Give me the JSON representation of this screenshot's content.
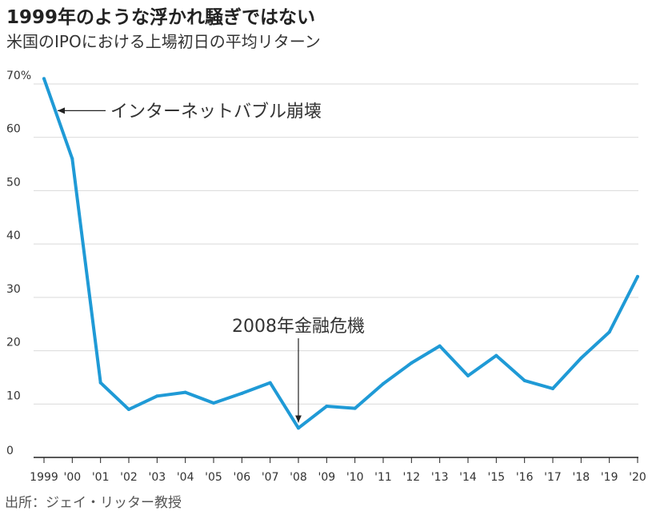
{
  "title": "1999年のような浮かれ騒ぎではない",
  "subtitle": "米国のIPOにおける上場初日の平均リターン",
  "source": "出所：ジェイ・リッター教授",
  "chart_data": {
    "type": "line",
    "categories": [
      "1999",
      "'00",
      "'01",
      "'02",
      "'03",
      "'04",
      "'05",
      "'06",
      "'07",
      "'08",
      "'09",
      "'10",
      "'11",
      "'12",
      "'13",
      "'14",
      "'15",
      "'16",
      "'17",
      "'18",
      "'19",
      "'20"
    ],
    "series": [
      {
        "values": [
          71,
          56,
          14,
          9,
          11.5,
          12.2,
          10.2,
          12,
          14,
          5.5,
          9.6,
          9.2,
          13.8,
          17.7,
          20.9,
          15.3,
          19.1,
          14.4,
          12.9,
          18.6,
          23.5,
          33.9
        ]
      }
    ],
    "y_ticks": [
      "0",
      "10",
      "20",
      "30",
      "40",
      "50",
      "60",
      "70%"
    ],
    "ylim": [
      0,
      70
    ],
    "grid": true,
    "line_color": "#1f9ad6",
    "annotations": [
      {
        "text": "インターネットバブル崩壊",
        "category": "1999",
        "value": 65
      },
      {
        "text": "2008年金融危機",
        "category": "'08",
        "value": 5.5
      }
    ]
  }
}
